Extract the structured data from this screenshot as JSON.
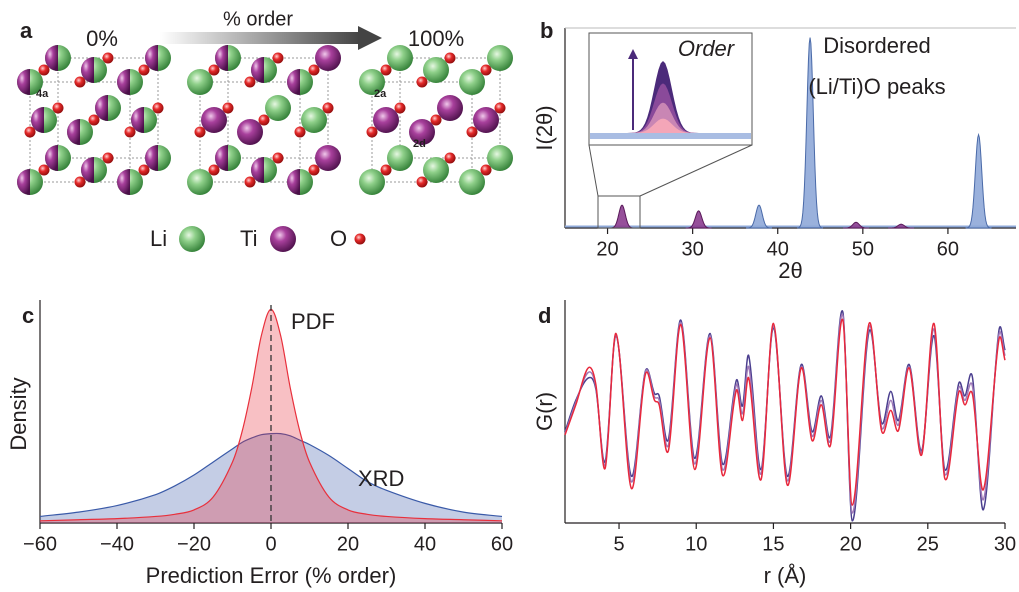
{
  "panel_a": {
    "label": "a",
    "start": "0%",
    "arrow": "% order",
    "end": "100%",
    "sites": [
      "4a",
      "2a",
      "2d"
    ],
    "legend": [
      "Li",
      "Ti",
      "O"
    ]
  },
  "chart_data": [
    {
      "type": "peaks",
      "label": "b",
      "xlabel": "2θ",
      "ylabel": "I(2θ)",
      "xlim": [
        15,
        68
      ],
      "xticks": [
        20,
        30,
        40,
        50,
        60
      ],
      "ylim": [
        0,
        1.05
      ],
      "annotation": [
        "Disordered",
        "(Li/Ti)O peaks"
      ],
      "series": [
        {
          "color": "#8fa9d8",
          "x": [
            37.8,
            43.8,
            63.6
          ],
          "values": [
            0.12,
            1.0,
            0.49
          ]
        },
        {
          "color": "#8b3d8f",
          "x": [
            21.7,
            30.7,
            49.2,
            54.5
          ],
          "values": [
            0.12,
            0.09,
            0.03,
            0.02
          ]
        }
      ],
      "inset": {
        "title": "Order",
        "values": [
          0.9,
          0.62,
          0.38,
          0.18
        ],
        "colors": [
          "#4b2a7a",
          "#8a4a9a",
          "#c986b4",
          "#f4a6b8"
        ]
      }
    },
    {
      "type": "area",
      "label": "c",
      "xlabel": "Prediction Error (% order)",
      "ylabel": "Density",
      "xlim": [
        -60,
        60
      ],
      "xticks": [
        {
          "value": -60,
          "label": "−60"
        },
        {
          "value": -40,
          "label": "−40"
        },
        {
          "value": -20,
          "label": "−20"
        },
        0,
        20,
        40,
        60
      ],
      "ylim": [
        0,
        1
      ],
      "vline": 0,
      "x": [
        -60,
        -50,
        -40,
        -30,
        -25,
        -20,
        -15,
        -10,
        -7.5,
        -5,
        -2.5,
        0,
        2.5,
        5,
        7.5,
        10,
        15,
        20,
        25,
        30,
        40,
        50,
        60
      ],
      "series": [
        {
          "name": "XRD",
          "color": "#3a5aa8",
          "values": [
            0.03,
            0.05,
            0.08,
            0.13,
            0.17,
            0.22,
            0.28,
            0.34,
            0.37,
            0.39,
            0.405,
            0.41,
            0.41,
            0.4,
            0.38,
            0.36,
            0.31,
            0.25,
            0.19,
            0.15,
            0.09,
            0.05,
            0.03
          ]
        },
        {
          "name": "PDF",
          "color": "#e8303c",
          "values": [
            0.01,
            0.015,
            0.02,
            0.03,
            0.04,
            0.06,
            0.12,
            0.28,
            0.42,
            0.62,
            0.86,
            0.98,
            0.86,
            0.62,
            0.42,
            0.28,
            0.12,
            0.06,
            0.04,
            0.03,
            0.02,
            0.015,
            0.01
          ]
        }
      ]
    },
    {
      "type": "line",
      "label": "d",
      "xlabel": "r (Å)",
      "ylabel": "G(r)",
      "xlim": [
        1.5,
        30
      ],
      "xticks": [
        5,
        10,
        15,
        20,
        25,
        30
      ],
      "ylim": [
        -1,
        1
      ],
      "x": [
        1.5,
        2.2,
        3.0,
        3.5,
        4.1,
        4.8,
        5.8,
        6.7,
        7.3,
        7.6,
        8.2,
        9.0,
        9.9,
        10.9,
        11.7,
        12.6,
        13.0,
        13.4,
        14.2,
        15.0,
        15.9,
        16.8,
        17.5,
        18.1,
        18.7,
        19.5,
        20.1,
        21.2,
        22.0,
        22.6,
        23.1,
        23.8,
        24.6,
        25.4,
        26.1,
        27.0,
        27.4,
        27.9,
        28.6,
        29.6,
        30.0
      ],
      "series": [
        {
          "color": "#4b3f8f",
          "values": [
            -0.18,
            0.1,
            0.3,
            0.2,
            -0.45,
            0.68,
            -0.58,
            0.36,
            0.16,
            0.14,
            -0.25,
            0.82,
            -0.42,
            0.7,
            -0.47,
            0.28,
            0.05,
            0.5,
            -0.52,
            0.75,
            -0.58,
            0.42,
            -0.18,
            0.14,
            -0.22,
            0.89,
            -0.98,
            0.72,
            -0.1,
            0.18,
            -0.08,
            0.42,
            -0.35,
            0.68,
            -0.52,
            0.25,
            0.14,
            0.3,
            -0.88,
            0.72,
            0.55
          ]
        },
        {
          "color": "#a07ab8",
          "values": [
            -0.2,
            0.08,
            0.35,
            0.22,
            -0.48,
            0.69,
            -0.63,
            0.35,
            0.13,
            0.1,
            -0.3,
            0.8,
            -0.47,
            0.68,
            -0.52,
            0.24,
            -0.02,
            0.4,
            -0.56,
            0.77,
            -0.62,
            0.4,
            -0.22,
            0.1,
            -0.26,
            0.86,
            -0.91,
            0.76,
            -0.14,
            0.1,
            -0.12,
            0.4,
            -0.37,
            0.74,
            -0.56,
            0.21,
            0.1,
            0.22,
            -0.79,
            0.68,
            0.5
          ]
        },
        {
          "color": "#e8283c",
          "values": [
            -0.21,
            0.06,
            0.39,
            0.24,
            -0.51,
            0.7,
            -0.69,
            0.33,
            0.1,
            0.06,
            -0.35,
            0.78,
            -0.52,
            0.66,
            -0.57,
            0.19,
            -0.08,
            0.3,
            -0.61,
            0.79,
            -0.66,
            0.39,
            -0.26,
            0.06,
            -0.3,
            0.82,
            -0.84,
            0.79,
            -0.17,
            0.01,
            -0.17,
            0.39,
            -0.39,
            0.79,
            -0.6,
            0.17,
            0.06,
            0.15,
            -0.7,
            0.64,
            0.46
          ]
        }
      ]
    }
  ]
}
